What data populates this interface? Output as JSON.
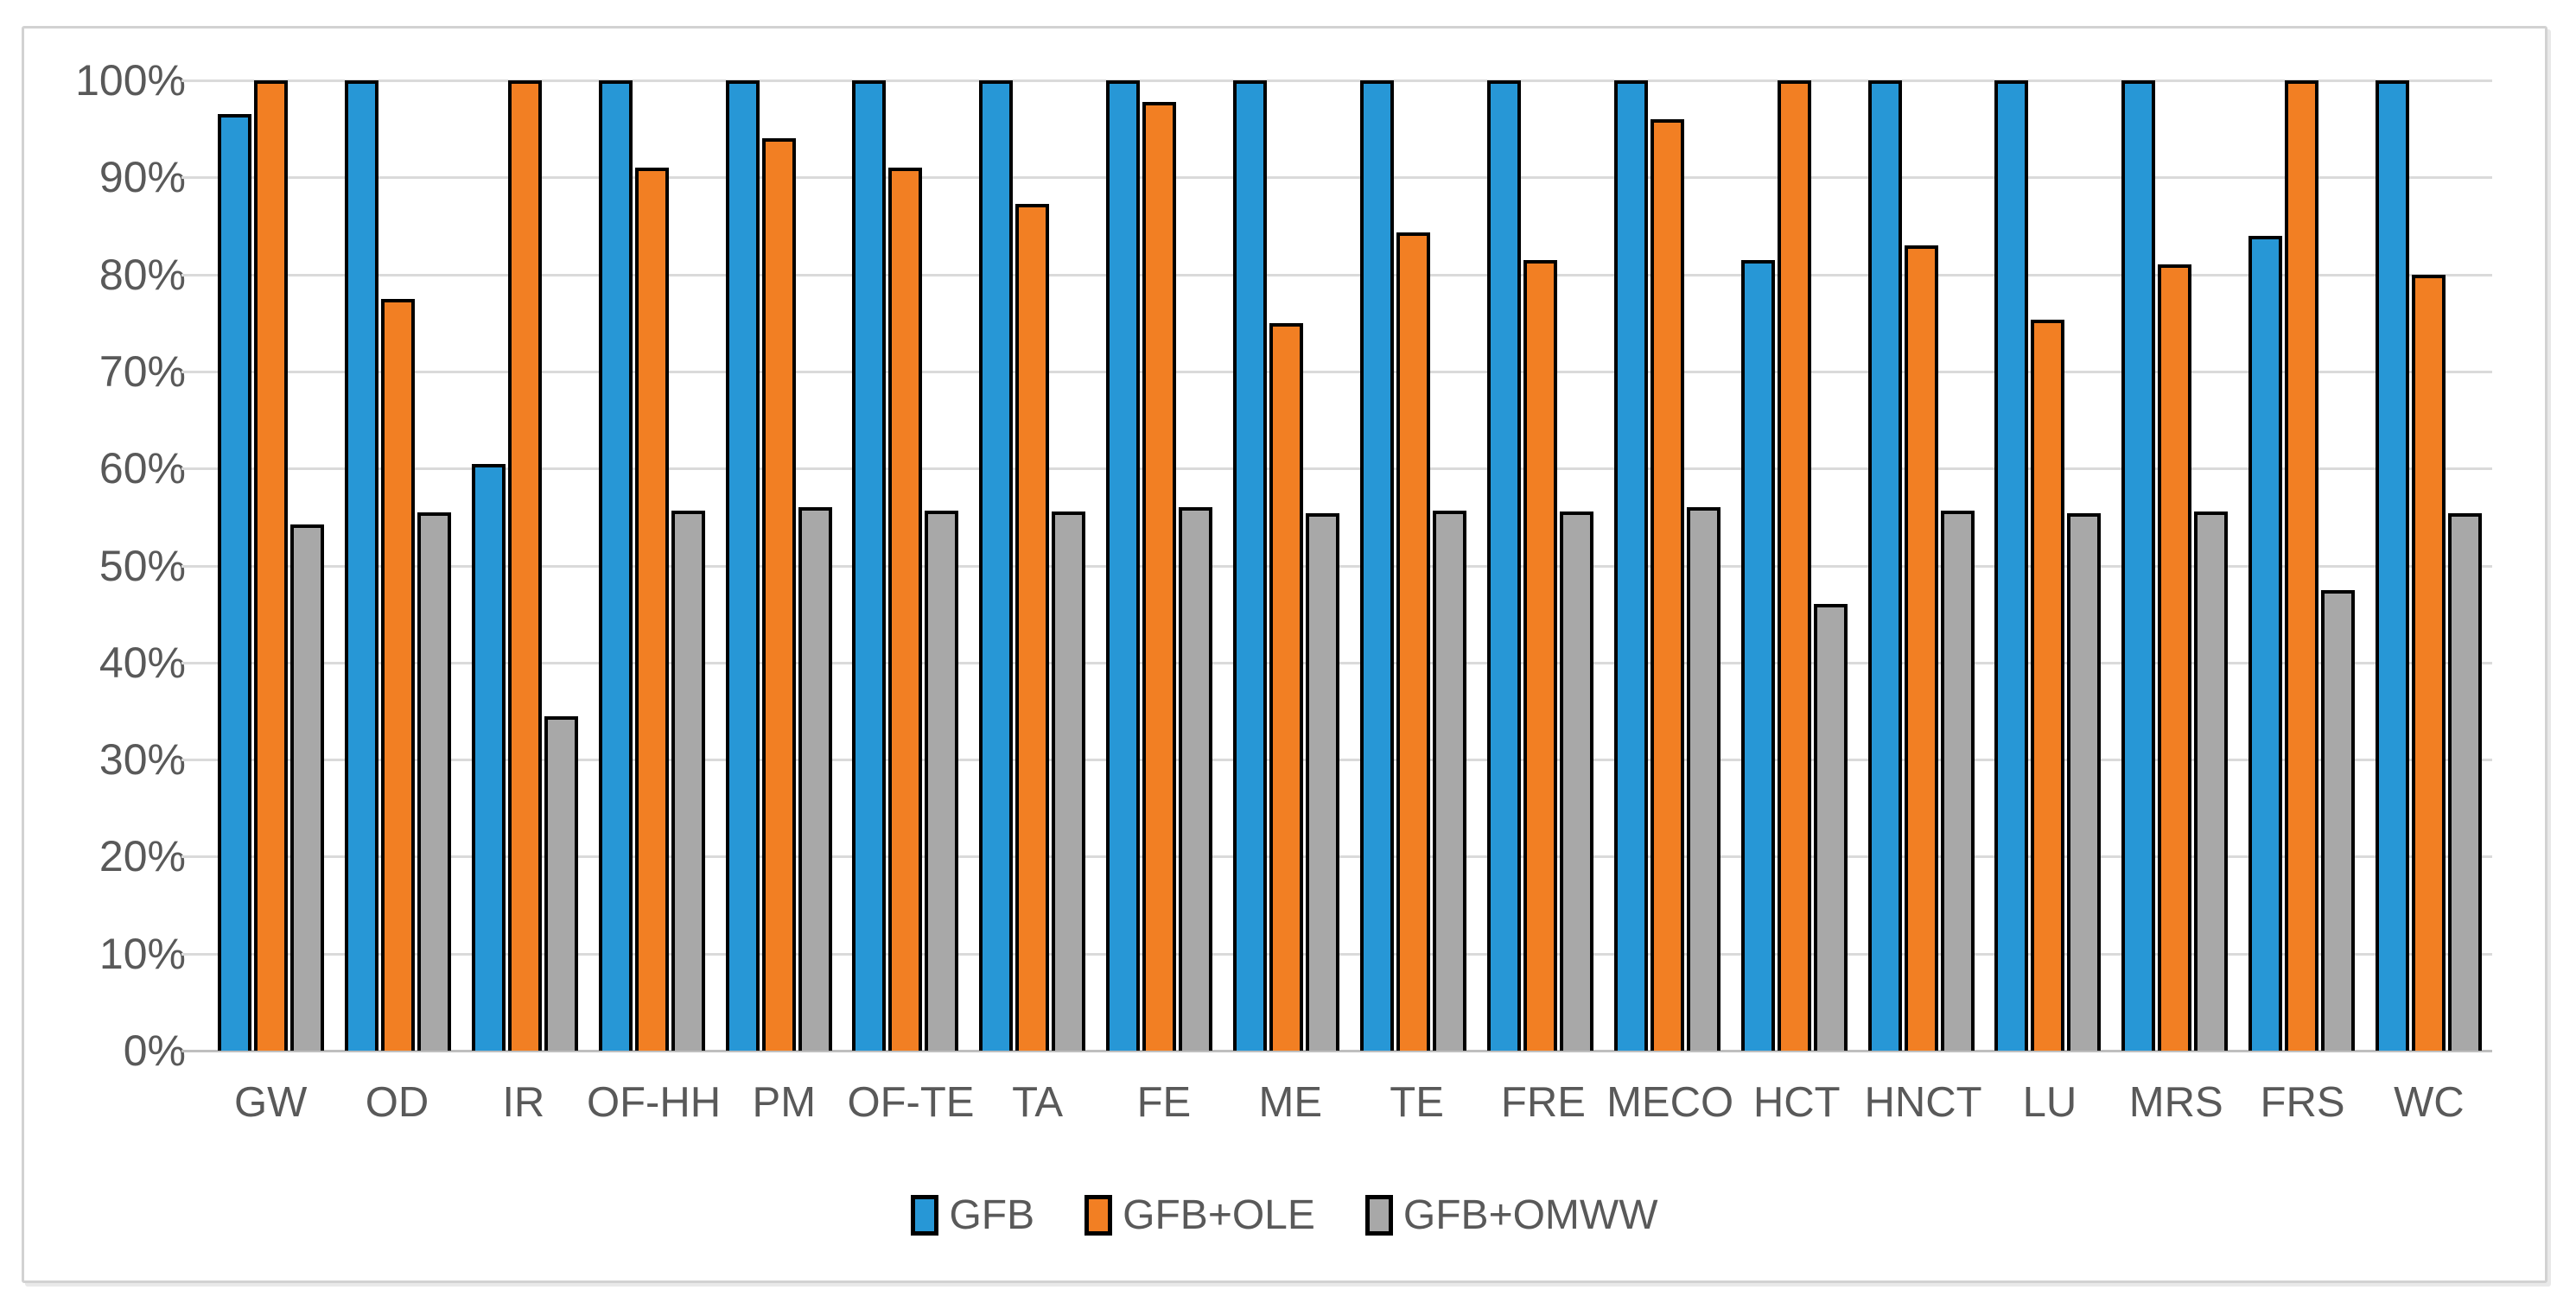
{
  "chart_data": {
    "type": "bar",
    "title": "",
    "xlabel": "",
    "ylabel": "",
    "ylim": [
      0,
      100
    ],
    "yticks": [
      "0%",
      "10%",
      "20%",
      "30%",
      "40%",
      "50%",
      "60%",
      "70%",
      "80%",
      "90%",
      "100%"
    ],
    "grid": "horizontal",
    "legend_position": "bottom",
    "categories": [
      "GW",
      "OD",
      "IR",
      "OF-HH",
      "PM",
      "OF-TE",
      "TA",
      "FE",
      "ME",
      "TE",
      "FRE",
      "MECO",
      "HCT",
      "HNCT",
      "LU",
      "MRS",
      "FRS",
      "WC"
    ],
    "series": [
      {
        "name": "GFB",
        "color": "#2797d6",
        "values": [
          96.5,
          100,
          60.5,
          100,
          100,
          100,
          100,
          100,
          100,
          100,
          100,
          100,
          81.5,
          100,
          100,
          100,
          84,
          100
        ]
      },
      {
        "name": "GFB+OLE",
        "color": "#f27f23",
        "values": [
          100,
          77.5,
          100,
          91,
          94,
          91,
          87.3,
          97.8,
          75,
          84.3,
          81.5,
          96,
          100,
          83,
          75.3,
          81,
          100,
          80
        ]
      },
      {
        "name": "GFB+OMWW",
        "color": "#a8a8a8",
        "values": [
          54.2,
          55.5,
          34.5,
          55.7,
          56,
          55.7,
          55.6,
          56,
          55.4,
          55.7,
          55.6,
          56,
          46,
          55.7,
          55.4,
          55.6,
          47.5,
          55.4
        ]
      }
    ],
    "style_colors": {
      "gridline": "#dadada",
      "axis_line": "#bfbfbf",
      "tick_label": "#595959",
      "bar_outline": "#000000",
      "frame_border": "#d2d2d2",
      "background": "#ffffff"
    }
  }
}
